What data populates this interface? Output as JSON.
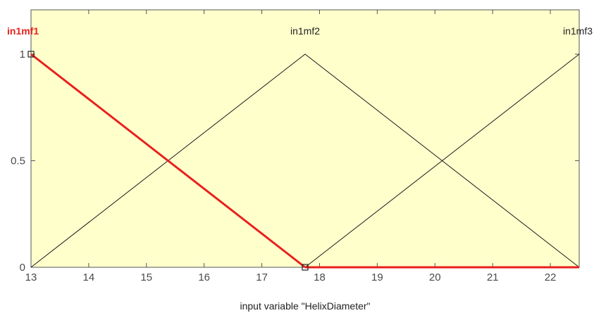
{
  "chart_data": {
    "type": "line",
    "xlabel": "input variable \"HelixDiameter\"",
    "xlim": [
      13,
      22.5
    ],
    "ylim": [
      0,
      1
    ],
    "x_ticks": [
      13,
      14,
      15,
      16,
      17,
      18,
      19,
      20,
      21,
      22
    ],
    "y_ticks": [
      0,
      0.5,
      1
    ],
    "y_tick_labels": [
      "0",
      "0.5",
      "1"
    ],
    "grid": false,
    "selected_series": "in1mf1",
    "series": [
      {
        "name": "in1mf1",
        "x": [
          13,
          13,
          17.75
        ],
        "y": [
          1,
          1,
          0
        ],
        "selected": true
      },
      {
        "name": "in1mf2",
        "x": [
          13,
          17.75,
          22.5
        ],
        "y": [
          0,
          1,
          0
        ],
        "selected": false
      },
      {
        "name": "in1mf3",
        "x": [
          17.75,
          22.5,
          22.5
        ],
        "y": [
          0,
          1,
          1
        ],
        "selected": false
      }
    ],
    "colors": {
      "plot_background": "#ffffcc",
      "selected": "#e8201c",
      "normal": "#1a1a1a"
    }
  }
}
